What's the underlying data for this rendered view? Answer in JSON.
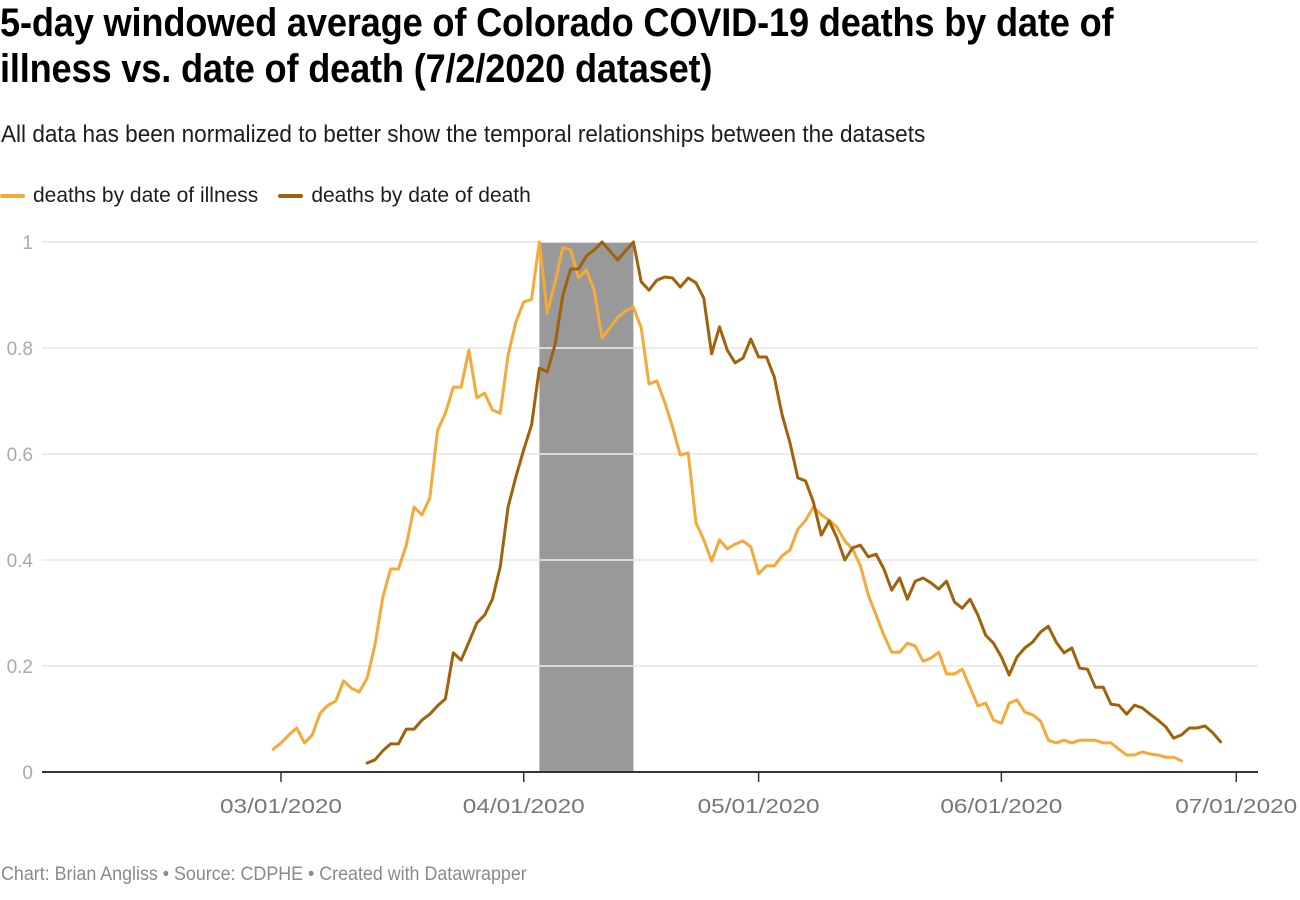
{
  "title_lines": [
    "5-day windowed average of Colorado COVID-19 deaths by date of",
    "illness vs. date of death (7/2/2020 dataset)"
  ],
  "subtitle": "All data has been normalized to better show the temporal relationships between the datasets",
  "footer": "Chart: Brian Angliss • Source: CDPHE • Created with Datawrapper",
  "colors": {
    "illness": "#f5a938",
    "death": "#a0620a",
    "band": "#999999",
    "grid": "#e6e6e6",
    "axis": "#333333",
    "tick_label": "#aaaaaa"
  },
  "chart_data": {
    "type": "line",
    "title": "5-day windowed average of Colorado COVID-19 deaths by date of illness vs. date of death (7/2/2020 dataset)",
    "subtitle": "All data has been normalized to better show the temporal relationships between the datasets",
    "xlabel": "",
    "ylabel": "",
    "x_type": "date",
    "x_domain": [
      "2020-02-20",
      "2020-07-03"
    ],
    "ylim": [
      0,
      1
    ],
    "y_ticks": [
      0,
      0.2,
      0.4,
      0.6,
      0.8,
      1
    ],
    "y_tick_labels": [
      "0",
      "0.2",
      "0.4",
      "0.6",
      "0.8",
      "1"
    ],
    "x_ticks": [
      "2020-03-01",
      "2020-04-01",
      "2020-05-01",
      "2020-06-01",
      "2020-07-01"
    ],
    "x_tick_labels": [
      "03/01/2020",
      "04/01/2020",
      "05/01/2020",
      "06/01/2020",
      "07/01/2020"
    ],
    "grid": "horizontal",
    "legend_position": "top-left",
    "highlight_range": {
      "start": "2020-04-03",
      "end": "2020-04-15"
    },
    "series": [
      {
        "name": "deaths by date of illness",
        "color_key": "illness",
        "start_date": "2020-02-29",
        "values": [
          0.043,
          0.055,
          0.07,
          0.083,
          0.055,
          0.07,
          0.111,
          0.126,
          0.134,
          0.172,
          0.158,
          0.151,
          0.177,
          0.24,
          0.33,
          0.383,
          0.383,
          0.428,
          0.5,
          0.485,
          0.517,
          0.645,
          0.677,
          0.726,
          0.726,
          0.796,
          0.706,
          0.715,
          0.683,
          0.677,
          0.787,
          0.849,
          0.887,
          0.892,
          1.0,
          0.866,
          0.923,
          0.99,
          0.985,
          0.932,
          0.947,
          0.909,
          0.819,
          0.838,
          0.858,
          0.87,
          0.877,
          0.838,
          0.732,
          0.738,
          0.698,
          0.651,
          0.598,
          0.602,
          0.47,
          0.438,
          0.398,
          0.438,
          0.421,
          0.43,
          0.436,
          0.425,
          0.374,
          0.389,
          0.389,
          0.408,
          0.419,
          0.458,
          0.475,
          0.5,
          0.485,
          0.475,
          0.462,
          0.436,
          0.421,
          0.389,
          0.334,
          0.296,
          0.258,
          0.226,
          0.226,
          0.243,
          0.238,
          0.209,
          0.215,
          0.226,
          0.185,
          0.185,
          0.194,
          0.16,
          0.125,
          0.13,
          0.098,
          0.092,
          0.13,
          0.136,
          0.113,
          0.108,
          0.096,
          0.06,
          0.055,
          0.06,
          0.055,
          0.06,
          0.06,
          0.06,
          0.055,
          0.055,
          0.043,
          0.032,
          0.032,
          0.038,
          0.034,
          0.032,
          0.028,
          0.028,
          0.021
        ]
      },
      {
        "name": "deaths by date of death",
        "color_key": "death",
        "start_date": "2020-03-12",
        "values": [
          0.017,
          0.023,
          0.04,
          0.053,
          0.053,
          0.081,
          0.081,
          0.098,
          0.109,
          0.125,
          0.138,
          0.225,
          0.211,
          0.245,
          0.281,
          0.296,
          0.326,
          0.387,
          0.5,
          0.557,
          0.608,
          0.655,
          0.762,
          0.755,
          0.806,
          0.9,
          0.949,
          0.949,
          0.974,
          0.985,
          1.0,
          0.983,
          0.966,
          0.983,
          1.0,
          0.925,
          0.909,
          0.928,
          0.934,
          0.932,
          0.915,
          0.932,
          0.923,
          0.894,
          0.789,
          0.84,
          0.796,
          0.772,
          0.781,
          0.817,
          0.783,
          0.783,
          0.745,
          0.674,
          0.621,
          0.555,
          0.549,
          0.509,
          0.447,
          0.474,
          0.442,
          0.4,
          0.423,
          0.428,
          0.406,
          0.411,
          0.383,
          0.343,
          0.366,
          0.326,
          0.36,
          0.366,
          0.357,
          0.345,
          0.36,
          0.321,
          0.309,
          0.326,
          0.296,
          0.258,
          0.243,
          0.217,
          0.183,
          0.217,
          0.234,
          0.245,
          0.264,
          0.275,
          0.245,
          0.225,
          0.234,
          0.196,
          0.194,
          0.16,
          0.16,
          0.128,
          0.126,
          0.109,
          0.126,
          0.121,
          0.109,
          0.098,
          0.085,
          0.064,
          0.07,
          0.083,
          0.083,
          0.087,
          0.074,
          0.057
        ]
      }
    ]
  }
}
